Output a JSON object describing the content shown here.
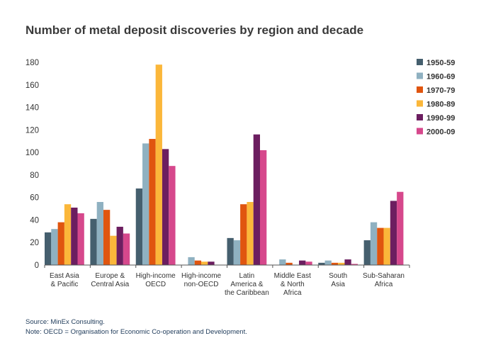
{
  "chart_data": {
    "type": "bar",
    "title": "Number of metal deposit discoveries by region and decade",
    "categories": [
      [
        "East Asia",
        "& Pacific"
      ],
      [
        "Europe &",
        "Central Asia"
      ],
      [
        "High-income",
        "OECD"
      ],
      [
        "High-income",
        "non-OECD"
      ],
      [
        "Latin",
        "America &",
        "the Caribbean"
      ],
      [
        "Middle East",
        "& North",
        "Africa"
      ],
      [
        "South",
        "Asia"
      ],
      [
        "Sub-Saharan",
        "Africa"
      ]
    ],
    "series": [
      {
        "name": "1950-59",
        "color": "#455f6e",
        "values": [
          29,
          41,
          68,
          0,
          24,
          0,
          2,
          22
        ]
      },
      {
        "name": "1960-69",
        "color": "#8fb1c1",
        "values": [
          32,
          56,
          108,
          7,
          22,
          5,
          4,
          38
        ]
      },
      {
        "name": "1970-79",
        "color": "#e0550f",
        "values": [
          38,
          49,
          112,
          4,
          54,
          2,
          2,
          33
        ]
      },
      {
        "name": "1980-89",
        "color": "#fbb73a",
        "values": [
          54,
          26,
          178,
          3,
          56,
          0,
          2,
          33
        ]
      },
      {
        "name": "1990-99",
        "color": "#6c1e60",
        "values": [
          51,
          34,
          103,
          3,
          116,
          4,
          5,
          57
        ]
      },
      {
        "name": "2000-09",
        "color": "#d6488c",
        "values": [
          46,
          28,
          88,
          0,
          102,
          3,
          1,
          65
        ]
      }
    ],
    "ylim": [
      0,
      180
    ],
    "yticks": [
      0,
      20,
      40,
      60,
      80,
      100,
      120,
      140,
      160,
      180
    ],
    "grid": false,
    "legend_position": "right"
  },
  "notes": {
    "source": "Source:  MinEx Consulting.",
    "note": "Note: OECD = Organisation for Economic Co-operation and Development."
  }
}
